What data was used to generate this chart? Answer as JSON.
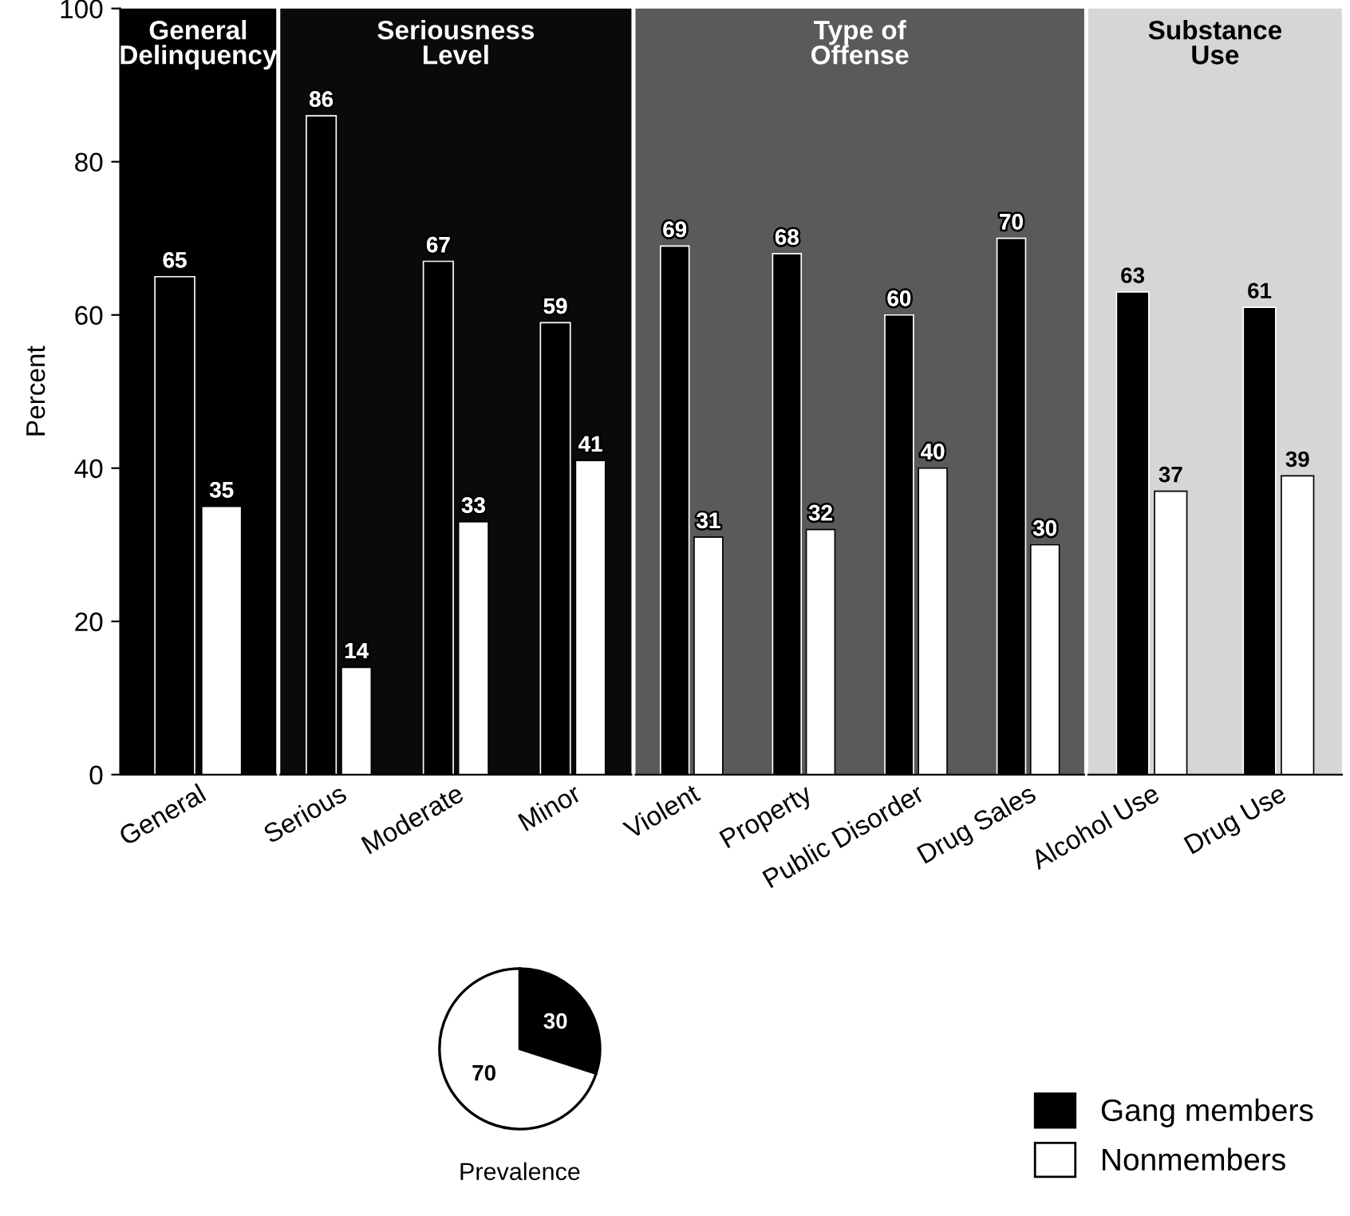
{
  "chart_data": [
    {
      "type": "bar",
      "title": "General Delinquency",
      "ylabel": "Percent",
      "ylim": [
        0,
        100
      ],
      "yticks": [
        0,
        20,
        40,
        60,
        80,
        100
      ],
      "data_labels": true,
      "categories": [
        "General"
      ],
      "series": [
        {
          "color": "#000000",
          "values": [
            65
          ]
        },
        {
          "color": "#ffffff",
          "values": [
            35
          ]
        }
      ]
    },
    {
      "type": "bar",
      "title": "Seriousness Level",
      "ylim": [
        0,
        100
      ],
      "yticks": [
        0,
        20,
        40,
        60,
        80,
        100
      ],
      "tick_labels": "x",
      "data_labels": true,
      "categories": [
        "Serious",
        "Moderate",
        "Minor"
      ],
      "series": [
        {
          "color": "#000000",
          "values": [
            86,
            67,
            59
          ]
        },
        {
          "color": "#ffffff",
          "values": [
            14,
            33,
            41
          ]
        }
      ]
    },
    {
      "type": "bar",
      "title": "Type of Offense",
      "ylim": [
        0,
        100
      ],
      "yticks": [
        0,
        20,
        40,
        60,
        80,
        100
      ],
      "tick_labels": "x",
      "data_labels": true,
      "categories": [
        "Violent",
        "Property",
        "Public Disorder",
        "Drug Sales"
      ],
      "series": [
        {
          "color": "#000000",
          "values": [
            69,
            68,
            60,
            70
          ]
        },
        {
          "color": "#ffffff",
          "values": [
            31,
            32,
            40,
            30
          ]
        }
      ]
    },
    {
      "type": "bar",
      "title": "Substance Use",
      "ylim": [
        0,
        100
      ],
      "yticks": [
        0,
        20,
        40,
        60,
        80,
        100
      ],
      "tick_labels": "x",
      "data_labels": true,
      "legend": "bottom",
      "categories": [
        "Alcohol Use",
        "Drug Use"
      ],
      "series": [
        {
          "name": "Gang members",
          "color": "#000000",
          "values": [
            63,
            61
          ]
        },
        {
          "name": "Nonmembers",
          "color": "#ffffff",
          "values": [
            37,
            39
          ]
        }
      ]
    },
    {
      "type": "pie",
      "title": "Prevalence",
      "categories": [
        null,
        null
      ],
      "values": [
        30,
        70
      ],
      "colors": [
        "#000000",
        "#ffffff"
      ],
      "data_labels": true
    }
  ]
}
